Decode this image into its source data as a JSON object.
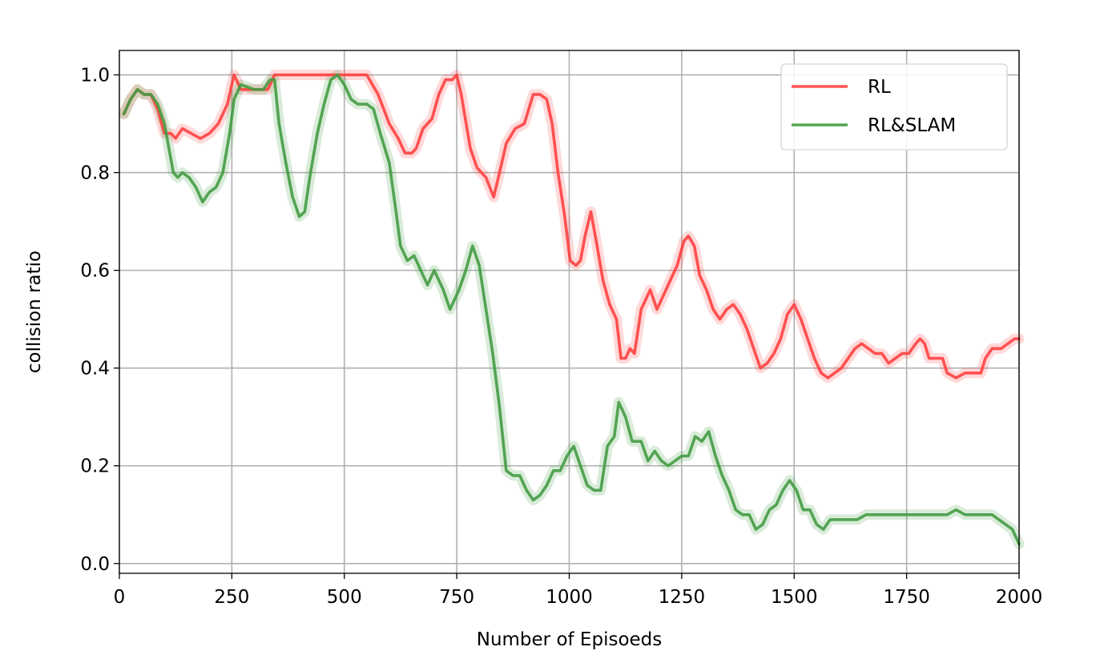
{
  "chart_data": {
    "type": "line",
    "title": "",
    "xlabel": "Number of Episoeds",
    "ylabel": "collision ratio",
    "xlim": [
      0,
      2000
    ],
    "ylim": [
      -0.02,
      1.05
    ],
    "xticks": [
      0,
      250,
      500,
      750,
      1000,
      1250,
      1500,
      1750,
      2000
    ],
    "xtick_labels": [
      "0",
      "250",
      "500",
      "750",
      "1000",
      "1250",
      "1500",
      "1750",
      "2000"
    ],
    "yticks": [
      0.0,
      0.2,
      0.4,
      0.6,
      0.8,
      1.0
    ],
    "ytick_labels": [
      "0.0",
      "0.2",
      "0.4",
      "0.6",
      "0.8",
      "1.0"
    ],
    "grid": true,
    "legend_position": "top-right",
    "series": [
      {
        "name": "RL",
        "color": "#ff4040",
        "points": [
          [
            10,
            0.92
          ],
          [
            25,
            0.95
          ],
          [
            40,
            0.97
          ],
          [
            55,
            0.96
          ],
          [
            70,
            0.96
          ],
          [
            85,
            0.93
          ],
          [
            100,
            0.88
          ],
          [
            115,
            0.88
          ],
          [
            125,
            0.87
          ],
          [
            140,
            0.89
          ],
          [
            160,
            0.88
          ],
          [
            180,
            0.87
          ],
          [
            200,
            0.88
          ],
          [
            220,
            0.9
          ],
          [
            240,
            0.94
          ],
          [
            255,
            1.0
          ],
          [
            270,
            0.97
          ],
          [
            300,
            0.97
          ],
          [
            330,
            0.97
          ],
          [
            345,
            1.0
          ],
          [
            400,
            1.0
          ],
          [
            450,
            1.0
          ],
          [
            500,
            1.0
          ],
          [
            550,
            1.0
          ],
          [
            575,
            0.96
          ],
          [
            600,
            0.9
          ],
          [
            620,
            0.87
          ],
          [
            635,
            0.84
          ],
          [
            650,
            0.84
          ],
          [
            660,
            0.85
          ],
          [
            675,
            0.89
          ],
          [
            695,
            0.91
          ],
          [
            710,
            0.96
          ],
          [
            725,
            0.99
          ],
          [
            740,
            0.99
          ],
          [
            750,
            1.0
          ],
          [
            760,
            0.96
          ],
          [
            780,
            0.85
          ],
          [
            795,
            0.81
          ],
          [
            815,
            0.79
          ],
          [
            832,
            0.75
          ],
          [
            845,
            0.8
          ],
          [
            860,
            0.86
          ],
          [
            880,
            0.89
          ],
          [
            900,
            0.9
          ],
          [
            920,
            0.96
          ],
          [
            935,
            0.96
          ],
          [
            950,
            0.95
          ],
          [
            962,
            0.9
          ],
          [
            975,
            0.8
          ],
          [
            990,
            0.71
          ],
          [
            1002,
            0.62
          ],
          [
            1015,
            0.61
          ],
          [
            1025,
            0.62
          ],
          [
            1035,
            0.67
          ],
          [
            1048,
            0.72
          ],
          [
            1060,
            0.66
          ],
          [
            1075,
            0.58
          ],
          [
            1090,
            0.53
          ],
          [
            1105,
            0.5
          ],
          [
            1115,
            0.42
          ],
          [
            1125,
            0.42
          ],
          [
            1135,
            0.44
          ],
          [
            1145,
            0.43
          ],
          [
            1160,
            0.52
          ],
          [
            1180,
            0.56
          ],
          [
            1195,
            0.52
          ],
          [
            1210,
            0.55
          ],
          [
            1225,
            0.58
          ],
          [
            1240,
            0.61
          ],
          [
            1255,
            0.66
          ],
          [
            1265,
            0.67
          ],
          [
            1278,
            0.65
          ],
          [
            1290,
            0.59
          ],
          [
            1305,
            0.56
          ],
          [
            1320,
            0.52
          ],
          [
            1335,
            0.5
          ],
          [
            1350,
            0.52
          ],
          [
            1365,
            0.53
          ],
          [
            1380,
            0.51
          ],
          [
            1395,
            0.48
          ],
          [
            1410,
            0.44
          ],
          [
            1425,
            0.4
          ],
          [
            1440,
            0.41
          ],
          [
            1455,
            0.43
          ],
          [
            1470,
            0.46
          ],
          [
            1485,
            0.51
          ],
          [
            1500,
            0.53
          ],
          [
            1515,
            0.5
          ],
          [
            1530,
            0.46
          ],
          [
            1545,
            0.42
          ],
          [
            1560,
            0.39
          ],
          [
            1575,
            0.38
          ],
          [
            1590,
            0.39
          ],
          [
            1605,
            0.4
          ],
          [
            1620,
            0.42
          ],
          [
            1635,
            0.44
          ],
          [
            1650,
            0.45
          ],
          [
            1665,
            0.44
          ],
          [
            1680,
            0.43
          ],
          [
            1695,
            0.43
          ],
          [
            1710,
            0.41
          ],
          [
            1725,
            0.42
          ],
          [
            1740,
            0.43
          ],
          [
            1755,
            0.43
          ],
          [
            1770,
            0.45
          ],
          [
            1780,
            0.46
          ],
          [
            1790,
            0.45
          ],
          [
            1800,
            0.42
          ],
          [
            1815,
            0.42
          ],
          [
            1830,
            0.42
          ],
          [
            1840,
            0.39
          ],
          [
            1860,
            0.38
          ],
          [
            1880,
            0.39
          ],
          [
            1900,
            0.39
          ],
          [
            1915,
            0.39
          ],
          [
            1925,
            0.42
          ],
          [
            1940,
            0.44
          ],
          [
            1960,
            0.44
          ],
          [
            1975,
            0.45
          ],
          [
            1990,
            0.46
          ],
          [
            2000,
            0.46
          ]
        ]
      },
      {
        "name": "RL&SLAM",
        "color": "#439c43",
        "points": [
          [
            10,
            0.92
          ],
          [
            25,
            0.95
          ],
          [
            40,
            0.97
          ],
          [
            55,
            0.96
          ],
          [
            70,
            0.96
          ],
          [
            85,
            0.94
          ],
          [
            100,
            0.9
          ],
          [
            110,
            0.85
          ],
          [
            120,
            0.8
          ],
          [
            130,
            0.79
          ],
          [
            140,
            0.8
          ],
          [
            155,
            0.79
          ],
          [
            170,
            0.77
          ],
          [
            185,
            0.74
          ],
          [
            200,
            0.76
          ],
          [
            215,
            0.77
          ],
          [
            230,
            0.8
          ],
          [
            245,
            0.88
          ],
          [
            255,
            0.95
          ],
          [
            270,
            0.98
          ],
          [
            300,
            0.97
          ],
          [
            320,
            0.97
          ],
          [
            335,
            0.99
          ],
          [
            345,
            0.99
          ],
          [
            355,
            0.9
          ],
          [
            370,
            0.82
          ],
          [
            385,
            0.75
          ],
          [
            400,
            0.71
          ],
          [
            412,
            0.72
          ],
          [
            425,
            0.8
          ],
          [
            440,
            0.88
          ],
          [
            455,
            0.94
          ],
          [
            470,
            0.99
          ],
          [
            485,
            1.0
          ],
          [
            500,
            0.98
          ],
          [
            515,
            0.95
          ],
          [
            530,
            0.94
          ],
          [
            550,
            0.94
          ],
          [
            565,
            0.93
          ],
          [
            580,
            0.88
          ],
          [
            600,
            0.82
          ],
          [
            615,
            0.72
          ],
          [
            625,
            0.65
          ],
          [
            640,
            0.62
          ],
          [
            655,
            0.63
          ],
          [
            670,
            0.6
          ],
          [
            685,
            0.57
          ],
          [
            700,
            0.6
          ],
          [
            720,
            0.56
          ],
          [
            735,
            0.52
          ],
          [
            755,
            0.56
          ],
          [
            770,
            0.6
          ],
          [
            785,
            0.65
          ],
          [
            800,
            0.61
          ],
          [
            815,
            0.52
          ],
          [
            830,
            0.43
          ],
          [
            845,
            0.32
          ],
          [
            860,
            0.19
          ],
          [
            875,
            0.18
          ],
          [
            890,
            0.18
          ],
          [
            905,
            0.15
          ],
          [
            920,
            0.13
          ],
          [
            935,
            0.14
          ],
          [
            950,
            0.16
          ],
          [
            965,
            0.19
          ],
          [
            980,
            0.19
          ],
          [
            995,
            0.22
          ],
          [
            1010,
            0.24
          ],
          [
            1025,
            0.2
          ],
          [
            1040,
            0.16
          ],
          [
            1055,
            0.15
          ],
          [
            1070,
            0.15
          ],
          [
            1085,
            0.24
          ],
          [
            1100,
            0.26
          ],
          [
            1110,
            0.33
          ],
          [
            1125,
            0.3
          ],
          [
            1140,
            0.25
          ],
          [
            1160,
            0.25
          ],
          [
            1175,
            0.21
          ],
          [
            1190,
            0.23
          ],
          [
            1205,
            0.21
          ],
          [
            1220,
            0.2
          ],
          [
            1235,
            0.21
          ],
          [
            1250,
            0.22
          ],
          [
            1265,
            0.22
          ],
          [
            1280,
            0.26
          ],
          [
            1295,
            0.25
          ],
          [
            1310,
            0.27
          ],
          [
            1325,
            0.22
          ],
          [
            1340,
            0.18
          ],
          [
            1355,
            0.15
          ],
          [
            1370,
            0.11
          ],
          [
            1385,
            0.1
          ],
          [
            1400,
            0.1
          ],
          [
            1415,
            0.07
          ],
          [
            1430,
            0.08
          ],
          [
            1445,
            0.11
          ],
          [
            1460,
            0.12
          ],
          [
            1475,
            0.15
          ],
          [
            1490,
            0.17
          ],
          [
            1505,
            0.15
          ],
          [
            1520,
            0.11
          ],
          [
            1535,
            0.11
          ],
          [
            1550,
            0.08
          ],
          [
            1565,
            0.07
          ],
          [
            1580,
            0.09
          ],
          [
            1600,
            0.09
          ],
          [
            1620,
            0.09
          ],
          [
            1640,
            0.09
          ],
          [
            1660,
            0.1
          ],
          [
            1680,
            0.1
          ],
          [
            1700,
            0.1
          ],
          [
            1720,
            0.1
          ],
          [
            1740,
            0.1
          ],
          [
            1760,
            0.1
          ],
          [
            1780,
            0.1
          ],
          [
            1800,
            0.1
          ],
          [
            1820,
            0.1
          ],
          [
            1840,
            0.1
          ],
          [
            1860,
            0.11
          ],
          [
            1880,
            0.1
          ],
          [
            1900,
            0.1
          ],
          [
            1920,
            0.1
          ],
          [
            1940,
            0.1
          ],
          [
            1955,
            0.09
          ],
          [
            1970,
            0.08
          ],
          [
            1985,
            0.07
          ],
          [
            1995,
            0.05
          ],
          [
            2000,
            0.04
          ]
        ]
      }
    ]
  }
}
